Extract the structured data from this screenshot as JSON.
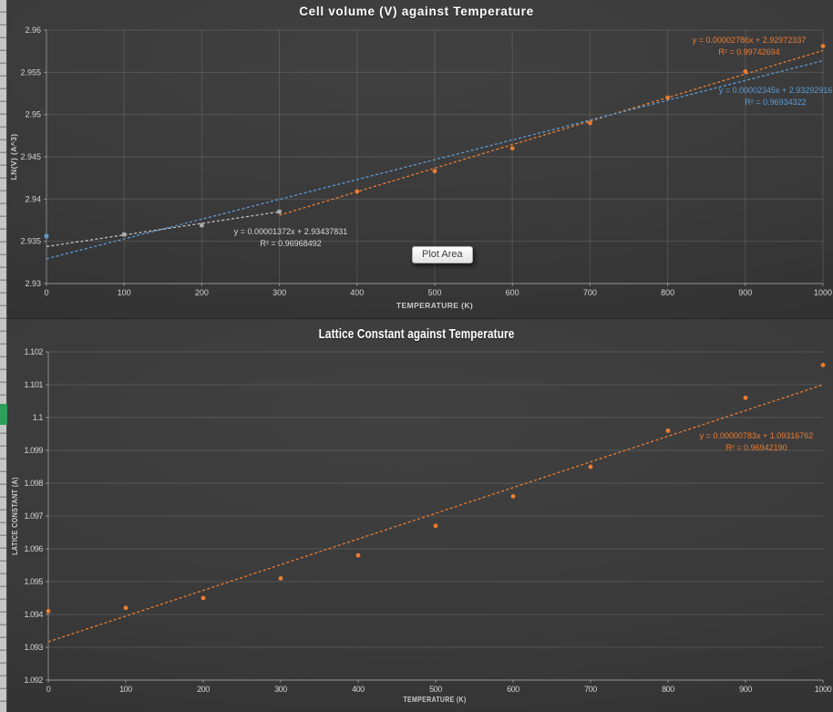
{
  "ui": {
    "edge_strip_color": "#c6c6c6",
    "green_mark_color": "#2E9E5B",
    "background_color": "#383838",
    "accent_orange": "#ED7D31",
    "accent_blue": "#5B9BD5",
    "accent_gray": "#BFBFBF"
  },
  "chart_data": [
    {
      "type": "scatter",
      "title": "Cell volume (V) against Temperature",
      "xlabel": "TEMPERATURE (K)",
      "ylabel": "LN(V) (A^3)",
      "xlim": [
        0,
        1000
      ],
      "ylim": [
        2.93,
        2.96
      ],
      "grid": "both",
      "legend": "none",
      "tooltip": "Plot Area",
      "x_ticks": [
        0,
        100,
        200,
        300,
        400,
        500,
        600,
        700,
        800,
        900,
        1000
      ],
      "x_tick_labels": [
        "0",
        "100",
        "200",
        "300",
        "400",
        "500",
        "600",
        "700",
        "800",
        "900",
        "1000"
      ],
      "y_ticks": [
        2.93,
        2.935,
        2.94,
        2.945,
        2.95,
        2.955,
        2.96
      ],
      "y_tick_labels": [
        "2.93",
        "2.935",
        "2.94",
        "2.945",
        "2.95",
        "2.955",
        "2.96"
      ],
      "series": [
        {
          "name": "blue-point-series",
          "color": "#5B9BD5",
          "marker": "square",
          "points": [
            [
              0,
              2.9356
            ]
          ]
        },
        {
          "name": "gray-low-temp-series",
          "color": "#ADADAD",
          "marker": "square",
          "points": [
            [
              100,
              2.9358
            ],
            [
              200,
              2.9369
            ],
            [
              300,
              2.9385
            ]
          ]
        },
        {
          "name": "orange-high-temp-series",
          "color": "#ED7D31",
          "marker": "circle",
          "points": [
            [
              400,
              2.9409
            ],
            [
              500,
              2.9433
            ],
            [
              600,
              2.946
            ],
            [
              700,
              2.949
            ],
            [
              800,
              2.952
            ],
            [
              900,
              2.9551
            ],
            [
              1000,
              2.9581
            ]
          ]
        }
      ],
      "trendlines": [
        {
          "name": "orange-trendline",
          "color": "#ED7D31",
          "slope": 2.786e-05,
          "intercept": 2.92972337,
          "x_range": [
            300,
            1000
          ],
          "label": "y = 0.00002786x + 2.92972337",
          "r2_label": "R² = 0.99742694"
        },
        {
          "name": "blue-trendline",
          "color": "#5B9BD5",
          "slope": 2.345e-05,
          "intercept": 2.93292916,
          "x_range": [
            0,
            1000
          ],
          "label": "y = 0.00002345x + 2.93292916",
          "r2_label": "R² = 0.96934322"
        },
        {
          "name": "gray-trendline",
          "color": "#BFBFBF",
          "slope": 1.372e-05,
          "intercept": 2.93437831,
          "x_range": [
            0,
            300
          ],
          "label": "y = 0.00001372x + 2.93437831",
          "r2_label": "R² = 0.96968492"
        }
      ]
    },
    {
      "type": "scatter",
      "title": "Lattice Constant against Temperature",
      "xlabel": "TEMPERATURE (K)",
      "ylabel": "LATICE CONSTANT (A)",
      "xlim": [
        0,
        1000
      ],
      "ylim": [
        1.092,
        1.102
      ],
      "grid": "horizontal",
      "legend": "none",
      "x_ticks": [
        0,
        100,
        200,
        300,
        400,
        500,
        600,
        700,
        800,
        900,
        1000
      ],
      "x_tick_labels": [
        "0",
        "100",
        "200",
        "300",
        "400",
        "500",
        "600",
        "700",
        "800",
        "900",
        "1000"
      ],
      "y_ticks": [
        1.092,
        1.093,
        1.094,
        1.095,
        1.096,
        1.097,
        1.098,
        1.099,
        1.1,
        1.101,
        1.102
      ],
      "y_tick_labels": [
        "1.092",
        "1.093",
        "1.094",
        "1.095",
        "1.096",
        "1.097",
        "1.098",
        "1.099",
        "1.1",
        "1.101",
        "1.102"
      ],
      "series": [
        {
          "name": "orange-lattice-series",
          "color": "#ED7D31",
          "marker": "circle",
          "points": [
            [
              0,
              1.0941
            ],
            [
              100,
              1.0942
            ],
            [
              200,
              1.0945
            ],
            [
              300,
              1.0951
            ],
            [
              400,
              1.0958
            ],
            [
              500,
              1.0967
            ],
            [
              600,
              1.0976
            ],
            [
              700,
              1.0985
            ],
            [
              800,
              1.0996
            ],
            [
              900,
              1.1006
            ],
            [
              1000,
              1.1016
            ]
          ]
        }
      ],
      "trendlines": [
        {
          "name": "orange-trendline",
          "color": "#ED7D31",
          "slope": 7.83e-06,
          "intercept": 1.09316762,
          "x_range": [
            0,
            1000
          ],
          "label": "y = 0.00000783x + 1.09316762",
          "r2_label": "R² = 0.96942190"
        }
      ]
    }
  ]
}
